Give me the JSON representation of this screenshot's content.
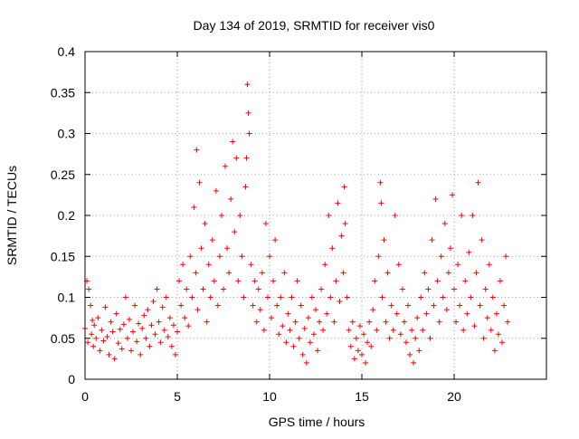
{
  "chart_data": {
    "type": "scatter",
    "title": "Day 134 of 2019, SRMTID for receiver vis0",
    "xlabel": "GPS time / hours",
    "ylabel": "SRMTID / TECUs",
    "xlim": [
      0,
      25
    ],
    "ylim": [
      0,
      0.4
    ],
    "x_ticks": [
      0,
      5,
      10,
      15,
      20
    ],
    "x_tick_labels": [
      "0",
      "5",
      "10",
      "15",
      "20"
    ],
    "y_ticks": [
      0,
      0.05,
      0.1,
      0.15,
      0.2,
      0.25,
      0.3,
      0.35,
      0.4
    ],
    "y_tick_labels": [
      "0",
      "0.05",
      "0.1",
      "0.15",
      "0.2",
      "0.25",
      "0.3",
      "0.35",
      "0.4"
    ],
    "grid": true,
    "marker": "+",
    "color": "#ff0000",
    "series": [
      {
        "name": "vis0",
        "points": [
          [
            0.0,
            0.062
          ],
          [
            0.1,
            0.12
          ],
          [
            0.15,
            0.045
          ],
          [
            0.2,
            0.11
          ],
          [
            0.3,
            0.09
          ],
          [
            0.35,
            0.055
          ],
          [
            0.4,
            0.072
          ],
          [
            0.45,
            0.04
          ],
          [
            0.5,
            0.066
          ],
          [
            0.6,
            0.05
          ],
          [
            0.7,
            0.075
          ],
          [
            0.8,
            0.035
          ],
          [
            0.9,
            0.06
          ],
          [
            1.0,
            0.047
          ],
          [
            1.1,
            0.088
          ],
          [
            1.2,
            0.052
          ],
          [
            1.3,
            0.03
          ],
          [
            1.4,
            0.07
          ],
          [
            1.5,
            0.058
          ],
          [
            1.6,
            0.025
          ],
          [
            1.7,
            0.08
          ],
          [
            1.8,
            0.044
          ],
          [
            1.9,
            0.061
          ],
          [
            2.0,
            0.037
          ],
          [
            2.1,
            0.067
          ],
          [
            2.2,
            0.1
          ],
          [
            2.3,
            0.05
          ],
          [
            2.4,
            0.073
          ],
          [
            2.5,
            0.035
          ],
          [
            2.6,
            0.058
          ],
          [
            2.7,
            0.09
          ],
          [
            2.8,
            0.046
          ],
          [
            2.9,
            0.068
          ],
          [
            3.0,
            0.03
          ],
          [
            3.1,
            0.062
          ],
          [
            3.2,
            0.078
          ],
          [
            3.3,
            0.05
          ],
          [
            3.4,
            0.085
          ],
          [
            3.5,
            0.04
          ],
          [
            3.6,
            0.066
          ],
          [
            3.7,
            0.095
          ],
          [
            3.8,
            0.055
          ],
          [
            3.9,
            0.11
          ],
          [
            4.0,
            0.07
          ],
          [
            4.1,
            0.045
          ],
          [
            4.2,
            0.088
          ],
          [
            4.3,
            0.06
          ],
          [
            4.4,
            0.1
          ],
          [
            4.5,
            0.052
          ],
          [
            4.6,
            0.075
          ],
          [
            4.7,
            0.04
          ],
          [
            4.8,
            0.066
          ],
          [
            4.9,
            0.03
          ],
          [
            5.0,
            0.058
          ],
          [
            5.1,
            0.12
          ],
          [
            5.2,
            0.09
          ],
          [
            5.3,
            0.14
          ],
          [
            5.4,
            0.075
          ],
          [
            5.5,
            0.11
          ],
          [
            5.6,
            0.065
          ],
          [
            5.7,
            0.15
          ],
          [
            5.8,
            0.1
          ],
          [
            5.9,
            0.21
          ],
          [
            6.0,
            0.13
          ],
          [
            6.05,
            0.28
          ],
          [
            6.1,
            0.085
          ],
          [
            6.2,
            0.24
          ],
          [
            6.3,
            0.16
          ],
          [
            6.4,
            0.11
          ],
          [
            6.5,
            0.19
          ],
          [
            6.6,
            0.07
          ],
          [
            6.7,
            0.14
          ],
          [
            6.8,
            0.1
          ],
          [
            6.9,
            0.17
          ],
          [
            7.0,
            0.12
          ],
          [
            7.1,
            0.23
          ],
          [
            7.2,
            0.09
          ],
          [
            7.3,
            0.15
          ],
          [
            7.4,
            0.2
          ],
          [
            7.5,
            0.11
          ],
          [
            7.6,
            0.26
          ],
          [
            7.7,
            0.16
          ],
          [
            7.8,
            0.13
          ],
          [
            7.9,
            0.22
          ],
          [
            8.0,
            0.29
          ],
          [
            8.1,
            0.18
          ],
          [
            8.2,
            0.27
          ],
          [
            8.3,
            0.12
          ],
          [
            8.4,
            0.2
          ],
          [
            8.5,
            0.15
          ],
          [
            8.6,
            0.1
          ],
          [
            8.7,
            0.235
          ],
          [
            8.75,
            0.27
          ],
          [
            8.8,
            0.36
          ],
          [
            8.85,
            0.325
          ],
          [
            8.9,
            0.3
          ],
          [
            9.0,
            0.14
          ],
          [
            9.1,
            0.09
          ],
          [
            9.2,
            0.12
          ],
          [
            9.3,
            0.07
          ],
          [
            9.4,
            0.11
          ],
          [
            9.5,
            0.085
          ],
          [
            9.6,
            0.13
          ],
          [
            9.7,
            0.06
          ],
          [
            9.8,
            0.19
          ],
          [
            9.9,
            0.1
          ],
          [
            10.0,
            0.15
          ],
          [
            10.1,
            0.075
          ],
          [
            10.2,
            0.12
          ],
          [
            10.3,
            0.17
          ],
          [
            10.4,
            0.09
          ],
          [
            10.5,
            0.055
          ],
          [
            10.6,
            0.1
          ],
          [
            10.7,
            0.065
          ],
          [
            10.8,
            0.13
          ],
          [
            10.9,
            0.045
          ],
          [
            11.0,
            0.08
          ],
          [
            11.1,
            0.06
          ],
          [
            11.2,
            0.1
          ],
          [
            11.3,
            0.04
          ],
          [
            11.4,
            0.07
          ],
          [
            11.5,
            0.12
          ],
          [
            11.6,
            0.05
          ],
          [
            11.7,
            0.09
          ],
          [
            11.8,
            0.03
          ],
          [
            11.9,
            0.062
          ],
          [
            12.0,
            0.02
          ],
          [
            12.1,
            0.075
          ],
          [
            12.2,
            0.045
          ],
          [
            12.3,
            0.1
          ],
          [
            12.4,
            0.055
          ],
          [
            12.5,
            0.085
          ],
          [
            12.6,
            0.035
          ],
          [
            12.7,
            0.07
          ],
          [
            12.8,
            0.11
          ],
          [
            12.9,
            0.06
          ],
          [
            13.0,
            0.14
          ],
          [
            13.1,
            0.08
          ],
          [
            13.2,
            0.2
          ],
          [
            13.3,
            0.1
          ],
          [
            13.4,
            0.16
          ],
          [
            13.5,
            0.07
          ],
          [
            13.6,
            0.12
          ],
          [
            13.7,
            0.215
          ],
          [
            13.8,
            0.095
          ],
          [
            13.9,
            0.175
          ],
          [
            14.0,
            0.13
          ],
          [
            14.05,
            0.235
          ],
          [
            14.1,
            0.19
          ],
          [
            14.2,
            0.1
          ],
          [
            14.3,
            0.06
          ],
          [
            14.4,
            0.04
          ],
          [
            14.5,
            0.07
          ],
          [
            14.6,
            0.025
          ],
          [
            14.7,
            0.05
          ],
          [
            14.8,
            0.035
          ],
          [
            14.9,
            0.065
          ],
          [
            15.0,
            0.03
          ],
          [
            15.1,
            0.055
          ],
          [
            15.2,
            0.02
          ],
          [
            15.3,
            0.045
          ],
          [
            15.4,
            0.07
          ],
          [
            15.5,
            0.04
          ],
          [
            15.6,
            0.085
          ],
          [
            15.7,
            0.12
          ],
          [
            15.8,
            0.06
          ],
          [
            15.9,
            0.15
          ],
          [
            16.0,
            0.24
          ],
          [
            16.05,
            0.215
          ],
          [
            16.1,
            0.1
          ],
          [
            16.2,
            0.17
          ],
          [
            16.3,
            0.07
          ],
          [
            16.4,
            0.13
          ],
          [
            16.5,
            0.05
          ],
          [
            16.6,
            0.09
          ],
          [
            16.7,
            0.06
          ],
          [
            16.8,
            0.2
          ],
          [
            16.9,
            0.08
          ],
          [
            17.0,
            0.14
          ],
          [
            17.1,
            0.055
          ],
          [
            17.2,
            0.11
          ],
          [
            17.3,
            0.07
          ],
          [
            17.4,
            0.045
          ],
          [
            17.5,
            0.09
          ],
          [
            17.6,
            0.03
          ],
          [
            17.7,
            0.06
          ],
          [
            17.8,
            0.02
          ],
          [
            17.9,
            0.05
          ],
          [
            18.0,
            0.075
          ],
          [
            18.1,
            0.035
          ],
          [
            18.2,
            0.1
          ],
          [
            18.3,
            0.06
          ],
          [
            18.4,
            0.13
          ],
          [
            18.5,
            0.08
          ],
          [
            18.6,
            0.11
          ],
          [
            18.7,
            0.05
          ],
          [
            18.8,
            0.17
          ],
          [
            18.9,
            0.09
          ],
          [
            19.0,
            0.22
          ],
          [
            19.1,
            0.12
          ],
          [
            19.2,
            0.07
          ],
          [
            19.3,
            0.15
          ],
          [
            19.4,
            0.1
          ],
          [
            19.5,
            0.19
          ],
          [
            19.6,
            0.085
          ],
          [
            19.7,
            0.13
          ],
          [
            19.8,
            0.16
          ],
          [
            19.9,
            0.225
          ],
          [
            20.0,
            0.11
          ],
          [
            20.1,
            0.07
          ],
          [
            20.2,
            0.14
          ],
          [
            20.3,
            0.09
          ],
          [
            20.4,
            0.2
          ],
          [
            20.5,
            0.06
          ],
          [
            20.6,
            0.12
          ],
          [
            20.7,
            0.08
          ],
          [
            20.8,
            0.155
          ],
          [
            20.9,
            0.1
          ],
          [
            21.0,
            0.2
          ],
          [
            21.1,
            0.065
          ],
          [
            21.2,
            0.13
          ],
          [
            21.3,
            0.24
          ],
          [
            21.4,
            0.09
          ],
          [
            21.5,
            0.17
          ],
          [
            21.6,
            0.05
          ],
          [
            21.7,
            0.11
          ],
          [
            21.8,
            0.075
          ],
          [
            21.9,
            0.14
          ],
          [
            22.0,
            0.06
          ],
          [
            22.1,
            0.1
          ],
          [
            22.2,
            0.035
          ],
          [
            22.3,
            0.08
          ],
          [
            22.4,
            0.055
          ],
          [
            22.5,
            0.12
          ],
          [
            22.6,
            0.045
          ],
          [
            22.7,
            0.09
          ],
          [
            22.8,
            0.15
          ],
          [
            22.9,
            0.07
          ]
        ]
      }
    ]
  }
}
